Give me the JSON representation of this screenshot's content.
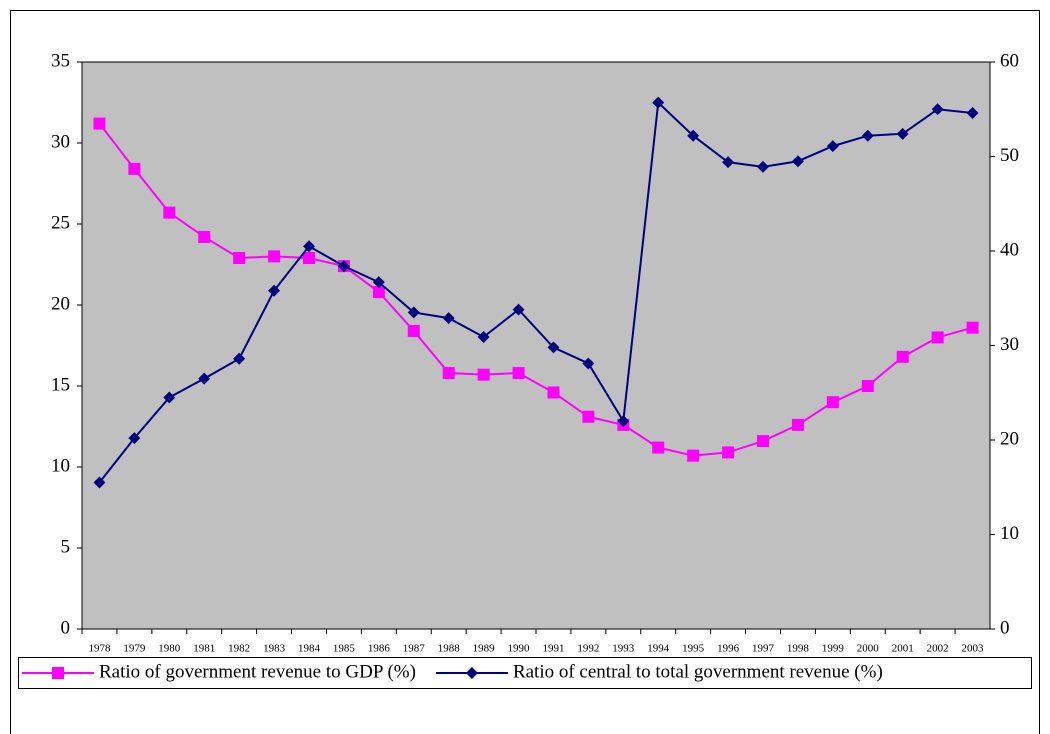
{
  "chart_data": {
    "type": "line",
    "categories": [
      "1978",
      "1979",
      "1980",
      "1981",
      "1982",
      "1983",
      "1984",
      "1985",
      "1986",
      "1987",
      "1988",
      "1989",
      "1990",
      "1991",
      "1992",
      "1993",
      "1994",
      "1995",
      "1996",
      "1997",
      "1998",
      "1999",
      "2000",
      "2001",
      "2002",
      "2003"
    ],
    "series": [
      {
        "name": "Ratio of government revenue to GDP (%)",
        "color": "#ff00ff",
        "marker": "square",
        "values": [
          31.2,
          28.4,
          25.7,
          24.2,
          22.9,
          23.0,
          22.9,
          22.4,
          20.8,
          18.4,
          15.8,
          15.7,
          15.8,
          14.6,
          13.1,
          12.6,
          11.2,
          10.7,
          10.9,
          11.6,
          12.6,
          14.0,
          15.0,
          16.8,
          18.0,
          18.6
        ]
      },
      {
        "name": "Ratio of central to total government revenue (%)",
        "color": "#000080",
        "marker": "diamond",
        "axis": "y2",
        "values": [
          15.5,
          20.2,
          24.5,
          26.5,
          28.6,
          35.8,
          40.5,
          38.4,
          36.7,
          33.5,
          32.9,
          30.9,
          33.8,
          29.8,
          28.1,
          22.0,
          55.7,
          52.2,
          49.4,
          48.9,
          49.5,
          51.1,
          52.2,
          52.4,
          55.0,
          54.6
        ]
      }
    ],
    "ylim": [
      0,
      35
    ],
    "yticks": [
      0,
      5,
      10,
      15,
      20,
      25,
      30,
      35
    ],
    "y2lim": [
      0,
      60
    ],
    "y2ticks": [
      0,
      10,
      20,
      30,
      40,
      50,
      60
    ],
    "plot_background": "#c0c0c0",
    "legend": "bottom"
  }
}
